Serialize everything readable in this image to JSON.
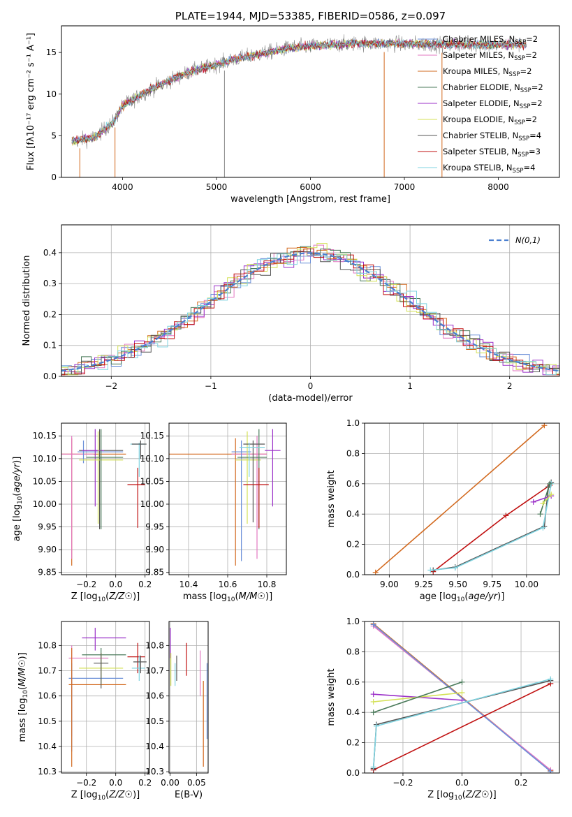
{
  "colors": {
    "chabrier_miles": "#6a8fd8",
    "salpeter_miles": "#e377c2",
    "kroupa_miles": "#d2691e",
    "chabrier_elodie": "#4a7a5a",
    "salpeter_elodie": "#9b30c8",
    "kroupa_elodie": "#d4e157",
    "chabrier_stelib": "#555555",
    "salpeter_stelib": "#c01010",
    "kroupa_stelib": "#7fd3e0",
    "grid": "#b0b0b0",
    "normal_curve": "#4a7fd0"
  },
  "chart_data": [
    {
      "id": "spectrum",
      "type": "line",
      "title": "PLATE=1944, MJD=53385, FIBERID=0586, z=0.097",
      "xlabel": "wavelength [Angstrom, rest frame]",
      "ylabel": "Flux [fλ10⁻¹⁷ erg cm⁻² s⁻¹ A⁻¹]",
      "xlim": [
        3350,
        8650
      ],
      "ylim": [
        0,
        18.2
      ],
      "xticks": [
        4000,
        5000,
        6000,
        7000,
        8000
      ],
      "yticks": [
        0,
        5,
        10,
        15
      ],
      "grid": false,
      "legend_position": "top-right",
      "continuum_knots": [
        [
          3450,
          4.3
        ],
        [
          3700,
          4.8
        ],
        [
          3900,
          6.6
        ],
        [
          4000,
          8.6
        ],
        [
          4300,
          10.6
        ],
        [
          4700,
          12.6
        ],
        [
          5200,
          14.2
        ],
        [
          5800,
          15.6
        ],
        [
          6500,
          16.1
        ],
        [
          7200,
          16.0
        ],
        [
          8000,
          15.9
        ],
        [
          8300,
          16.0
        ]
      ],
      "series": [
        {
          "name": "Chabrier MILES, N$_{SSP}$=2",
          "label_main": "Chabrier MILES, N",
          "label_sub": "SSP",
          "label_tail": "=2",
          "color_key": "chabrier_miles"
        },
        {
          "name": "Salpeter MILES, N$_{SSP}$=2",
          "label_main": "Salpeter MILES, N",
          "label_sub": "SSP",
          "label_tail": "=2",
          "color_key": "salpeter_miles"
        },
        {
          "name": "Kroupa MILES, N$_{SSP}$=2",
          "label_main": "Kroupa MILES, N",
          "label_sub": "SSP",
          "label_tail": "=2",
          "color_key": "kroupa_miles"
        },
        {
          "name": "Chabrier ELODIE, N$_{SSP}$=2",
          "label_main": "Chabrier ELODIE, N",
          "label_sub": "SSP",
          "label_tail": "=2",
          "color_key": "chabrier_elodie"
        },
        {
          "name": "Salpeter ELODIE, N$_{SSP}$=2",
          "label_main": "Salpeter ELODIE, N",
          "label_sub": "SSP",
          "label_tail": "=2",
          "color_key": "salpeter_elodie"
        },
        {
          "name": "Kroupa ELODIE, N$_{SSP}$=2",
          "label_main": "Kroupa ELODIE, N",
          "label_sub": "SSP",
          "label_tail": "=2",
          "color_key": "kroupa_elodie"
        },
        {
          "name": "Chabrier STELIB, N$_{SSP}$=4",
          "label_main": "Chabrier STELIB, N",
          "label_sub": "SSP",
          "label_tail": "=4",
          "color_key": "chabrier_stelib"
        },
        {
          "name": "Salpeter STELIB, N$_{SSP}$=3",
          "label_main": "Salpeter STELIB, N",
          "label_sub": "SSP",
          "label_tail": "=3",
          "color_key": "salpeter_stelib"
        },
        {
          "name": "Kroupa STELIB, N$_{SSP}$=4",
          "label_main": "Kroupa STELIB, N",
          "label_sub": "SSP",
          "label_tail": "=4",
          "color_key": "kroupa_stelib"
        }
      ]
    },
    {
      "id": "residual_hist",
      "type": "line",
      "xlabel": "(data-model)/error",
      "ylabel": "Normed distribution",
      "xlim": [
        -2.5,
        2.5
      ],
      "ylim": [
        0,
        0.49
      ],
      "xticks": [
        -2,
        -1,
        0,
        1,
        2
      ],
      "yticks": [
        0.0,
        0.1,
        0.2,
        0.3,
        0.4
      ],
      "grid": true,
      "legend_position": "top-right",
      "curve_label": "N(0,1)",
      "bin_width": 0.1
    },
    {
      "id": "age_vs_Z",
      "type": "scatter",
      "xlabel": "Z [log10(Z/Z☉)]",
      "ylabel": "age [log10(age/yr)]",
      "xlim": [
        -0.37,
        0.23
      ],
      "ylim": [
        9.845,
        10.178
      ],
      "xticks": [
        -0.2,
        0.0,
        0.2
      ],
      "yticks": [
        9.85,
        9.9,
        9.95,
        10.0,
        10.05,
        10.1,
        10.15
      ],
      "grid": true,
      "points": [
        {
          "color_key": "kroupa_miles",
          "x": -0.3,
          "xlo": -0.37,
          "xhi": 0.07,
          "y": 10.11,
          "ylo": 9.865,
          "yhi": 10.145
        },
        {
          "color_key": "salpeter_miles",
          "x": -0.3,
          "xlo": -0.37,
          "xhi": -0.15,
          "y": 10.11,
          "ylo": 9.88,
          "yhi": 10.15
        },
        {
          "color_key": "chabrier_miles",
          "x": -0.22,
          "xlo": -0.26,
          "xhi": 0.05,
          "y": 10.115,
          "ylo": 10.09,
          "yhi": 10.14
        },
        {
          "color_key": "chabrier_stelib",
          "x": -0.11,
          "xlo": -0.25,
          "xhi": 0.05,
          "y": 10.118,
          "ylo": 9.945,
          "yhi": 10.165
        },
        {
          "color_key": "salpeter_elodie",
          "x": -0.14,
          "xlo": -0.23,
          "xhi": -0.08,
          "y": 10.118,
          "ylo": 9.995,
          "yhi": 10.165
        },
        {
          "color_key": "kroupa_elodie",
          "x": -0.12,
          "xlo": -0.25,
          "xhi": 0.05,
          "y": 10.097,
          "ylo": 9.957,
          "yhi": 10.16
        },
        {
          "color_key": "chabrier_elodie",
          "x": -0.1,
          "xlo": -0.2,
          "xhi": 0.05,
          "y": 10.103,
          "ylo": 9.945,
          "yhi": 10.165
        },
        {
          "color_key": "salpeter_stelib",
          "x": 0.15,
          "xlo": 0.08,
          "xhi": 0.2,
          "y": 10.043,
          "ylo": 9.948,
          "yhi": 10.08
        },
        {
          "color_key": "kroupa_stelib",
          "x": 0.16,
          "xlo": 0.1,
          "xhi": 0.2,
          "y": 10.132,
          "ylo": 10.06,
          "yhi": 10.135
        },
        {
          "color_key": "chabrier_stelib",
          "x": 0.17,
          "xlo": 0.11,
          "xhi": 0.21,
          "y": 10.132,
          "ylo": 10.1,
          "yhi": 10.14
        }
      ]
    },
    {
      "id": "age_vs_mass",
      "type": "scatter",
      "xlabel": "mass [log10(M/M☉)]",
      "ylabel": "",
      "xlim": [
        10.3,
        10.9
      ],
      "ylim": [
        9.845,
        10.178
      ],
      "xticks": [
        10.4,
        10.6,
        10.8
      ],
      "yticks": [
        9.85,
        9.9,
        9.95,
        10.0,
        10.05,
        10.1,
        10.15
      ],
      "grid": true,
      "points": [
        {
          "color_key": "kroupa_miles",
          "x": 10.64,
          "xlo": 10.3,
          "xhi": 10.8,
          "y": 10.11,
          "ylo": 9.865,
          "yhi": 10.145
        },
        {
          "color_key": "salpeter_miles",
          "x": 10.75,
          "xlo": 10.62,
          "xhi": 10.8,
          "y": 10.11,
          "ylo": 9.88,
          "yhi": 10.15
        },
        {
          "color_key": "chabrier_miles",
          "x": 10.67,
          "xlo": 10.62,
          "xhi": 10.72,
          "y": 10.115,
          "ylo": 9.875,
          "yhi": 10.14
        },
        {
          "color_key": "kroupa_elodie",
          "x": 10.7,
          "xlo": 10.64,
          "xhi": 10.77,
          "y": 10.097,
          "ylo": 9.957,
          "yhi": 10.16
        },
        {
          "color_key": "chabrier_elodie",
          "x": 10.76,
          "xlo": 10.65,
          "xhi": 10.8,
          "y": 10.103,
          "ylo": 9.945,
          "yhi": 10.165
        },
        {
          "color_key": "salpeter_elodie",
          "x": 10.83,
          "xlo": 10.79,
          "xhi": 10.87,
          "y": 10.118,
          "ylo": 9.995,
          "yhi": 10.165
        },
        {
          "color_key": "chabrier_stelib",
          "x": 10.73,
          "xlo": 10.68,
          "xhi": 10.79,
          "y": 10.132,
          "ylo": 9.96,
          "yhi": 10.14
        },
        {
          "color_key": "salpeter_stelib",
          "x": 10.76,
          "xlo": 10.68,
          "xhi": 10.81,
          "y": 10.043,
          "ylo": 9.948,
          "yhi": 10.08
        },
        {
          "color_key": "kroupa_stelib",
          "x": 10.71,
          "xlo": 10.66,
          "xhi": 10.79,
          "y": 10.125,
          "ylo": 10.06,
          "yhi": 10.135
        }
      ]
    },
    {
      "id": "mass_vs_Z",
      "type": "scatter",
      "xlabel": "Z [log10(Z/Z☉)]",
      "ylabel": "mass [log10(M/M☉)]",
      "xlim": [
        -0.37,
        0.23
      ],
      "ylim": [
        10.295,
        10.895
      ],
      "xticks": [
        -0.2,
        0.0,
        0.2
      ],
      "yticks": [
        10.3,
        10.4,
        10.5,
        10.6,
        10.7,
        10.8
      ],
      "grid": true,
      "points": [
        {
          "color_key": "salpeter_elodie",
          "x": -0.14,
          "xlo": -0.23,
          "xhi": 0.07,
          "y": 10.83,
          "ylo": 10.78,
          "yhi": 10.87
        },
        {
          "color_key": "chabrier_elodie",
          "x": -0.1,
          "xlo": -0.23,
          "xhi": 0.07,
          "y": 10.763,
          "ylo": 10.65,
          "yhi": 10.79
        },
        {
          "color_key": "salpeter_miles",
          "x": -0.3,
          "xlo": -0.32,
          "xhi": -0.05,
          "y": 10.75,
          "ylo": 10.44,
          "yhi": 10.8
        },
        {
          "color_key": "kroupa_elodie",
          "x": -0.1,
          "xlo": -0.25,
          "xhi": 0.05,
          "y": 10.71,
          "ylo": 10.64,
          "yhi": 10.77
        },
        {
          "color_key": "chabrier_miles",
          "x": -0.3,
          "xlo": -0.32,
          "xhi": 0.05,
          "y": 10.67,
          "ylo": 10.38,
          "yhi": 10.73
        },
        {
          "color_key": "kroupa_miles",
          "x": -0.3,
          "xlo": -0.32,
          "xhi": 0.07,
          "y": 10.645,
          "ylo": 10.32,
          "yhi": 10.79
        },
        {
          "color_key": "chabrier_stelib",
          "x": -0.1,
          "xlo": -0.15,
          "xhi": -0.05,
          "y": 10.73,
          "ylo": 10.63,
          "yhi": 10.77
        },
        {
          "color_key": "salpeter_stelib",
          "x": 0.15,
          "xlo": 0.08,
          "xhi": 0.2,
          "y": 10.755,
          "ylo": 10.69,
          "yhi": 10.81
        },
        {
          "color_key": "kroupa_stelib",
          "x": 0.16,
          "xlo": 0.11,
          "xhi": 0.2,
          "y": 10.71,
          "ylo": 10.66,
          "yhi": 10.76
        },
        {
          "color_key": "chabrier_stelib",
          "x": 0.17,
          "xlo": 0.12,
          "xhi": 0.21,
          "y": 10.735,
          "ylo": 10.69,
          "yhi": 10.76
        }
      ]
    },
    {
      "id": "mass_vs_ebv",
      "type": "scatter",
      "xlabel": "E(B-V)",
      "ylabel": "",
      "xlim": [
        -0.002,
        0.072
      ],
      "ylim": [
        10.295,
        10.895
      ],
      "xticks": [
        0.0,
        0.05
      ],
      "yticks": [
        10.3,
        10.4,
        10.5,
        10.6,
        10.7,
        10.8
      ],
      "grid": true,
      "points": [
        {
          "color_key": "salpeter_elodie",
          "x": 0.0005,
          "ylo": 10.75,
          "yhi": 10.87
        },
        {
          "color_key": "kroupa_elodie",
          "x": 0.0015,
          "ylo": 10.64,
          "yhi": 10.77
        },
        {
          "color_key": "kroupa_stelib",
          "x": 0.0095,
          "ylo": 10.64,
          "yhi": 10.73
        },
        {
          "color_key": "chabrier_stelib",
          "x": 0.0125,
          "ylo": 10.66,
          "yhi": 10.76
        },
        {
          "color_key": "salpeter_stelib",
          "x": 0.031,
          "ylo": 10.68,
          "yhi": 10.81
        },
        {
          "color_key": "salpeter_miles",
          "x": 0.057,
          "ylo": 10.6,
          "yhi": 10.78
        },
        {
          "color_key": "kroupa_miles",
          "x": 0.063,
          "ylo": 10.32,
          "yhi": 10.66
        },
        {
          "color_key": "chabrier_miles",
          "x": 0.07,
          "ylo": 10.43,
          "yhi": 10.73
        }
      ]
    },
    {
      "id": "weight_vs_age",
      "type": "line",
      "xlabel": "age [log10(age/yr)]",
      "ylabel": "mass weight",
      "xlim": [
        8.82,
        10.24
      ],
      "ylim": [
        0.0,
        1.0
      ],
      "xticks": [
        9.0,
        9.25,
        9.5,
        9.75,
        10.0
      ],
      "yticks": [
        0.0,
        0.2,
        0.4,
        0.6,
        0.8,
        1.0
      ],
      "grid": true,
      "series": [
        {
          "color_key": "kroupa_miles",
          "x": [
            8.9,
            10.13
          ],
          "y": [
            0.015,
            0.985
          ]
        },
        {
          "color_key": "salpeter_stelib",
          "x": [
            9.32,
            9.85,
            10.17
          ],
          "y": [
            0.02,
            0.39,
            0.59
          ]
        },
        {
          "color_key": "chabrier_stelib",
          "x": [
            9.32,
            9.48,
            10.13,
            10.16,
            10.18
          ],
          "y": [
            0.03,
            0.05,
            0.32,
            0.58,
            0.61
          ]
        },
        {
          "color_key": "kroupa_stelib",
          "x": [
            9.3,
            9.48,
            10.12,
            10.18
          ],
          "y": [
            0.03,
            0.045,
            0.31,
            0.6
          ]
        },
        {
          "color_key": "chabrier_elodie",
          "x": [
            10.1,
            10.17
          ],
          "y": [
            0.4,
            0.6
          ]
        },
        {
          "color_key": "salpeter_elodie",
          "x": [
            10.05,
            10.18
          ],
          "y": [
            0.48,
            0.52
          ]
        },
        {
          "color_key": "kroupa_elodie",
          "x": [
            10.12,
            10.18
          ],
          "y": [
            0.47,
            0.53
          ]
        }
      ]
    },
    {
      "id": "weight_vs_Z",
      "type": "line",
      "xlabel": "Z [log10(Z/Z☉)]",
      "ylabel": "mass weight",
      "xlim": [
        -0.33,
        0.33
      ],
      "ylim": [
        0.0,
        1.0
      ],
      "xticks": [
        -0.2,
        0.0,
        0.2
      ],
      "yticks": [
        0.0,
        0.2,
        0.4,
        0.6,
        0.8,
        1.0
      ],
      "grid": true,
      "series": [
        {
          "color_key": "kroupa_miles",
          "x": [
            -0.3,
            0.3
          ],
          "y": [
            0.985,
            0.015
          ]
        },
        {
          "color_key": "salpeter_miles",
          "x": [
            -0.3,
            0.3
          ],
          "y": [
            0.97,
            0.02
          ]
        },
        {
          "color_key": "chabrier_miles",
          "x": [
            -0.3,
            0.3
          ],
          "y": [
            0.98,
            0.01
          ]
        },
        {
          "color_key": "salpeter_elodie",
          "x": [
            -0.3,
            0.0
          ],
          "y": [
            0.52,
            0.48
          ]
        },
        {
          "color_key": "kroupa_elodie",
          "x": [
            -0.3,
            0.0
          ],
          "y": [
            0.47,
            0.53
          ]
        },
        {
          "color_key": "chabrier_elodie",
          "x": [
            -0.3,
            0.0
          ],
          "y": [
            0.4,
            0.6
          ]
        },
        {
          "color_key": "salpeter_stelib",
          "x": [
            -0.3,
            0.3
          ],
          "y": [
            0.02,
            0.59
          ]
        },
        {
          "color_key": "chabrier_stelib",
          "x": [
            -0.3,
            -0.29,
            0.3
          ],
          "y": [
            0.03,
            0.32,
            0.61
          ]
        },
        {
          "color_key": "kroupa_stelib",
          "x": [
            -0.3,
            -0.29,
            0.3
          ],
          "y": [
            0.04,
            0.31,
            0.62
          ]
        }
      ]
    }
  ]
}
